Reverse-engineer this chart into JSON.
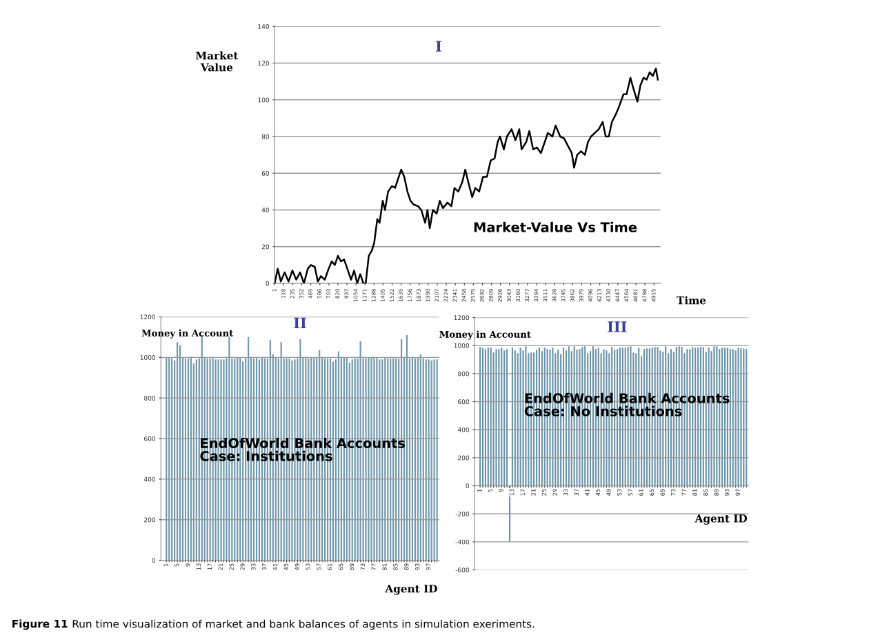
{
  "chart_data": [
    {
      "type": "line",
      "title": "I",
      "xlabel": "Time",
      "ylabel": "Market\nValue",
      "color": "#000000",
      "grid": "y",
      "annotations": [
        "Market-Value Vs Time"
      ],
      "xlim": [
        1,
        5000
      ],
      "xticks": [
        1,
        118,
        235,
        352,
        469,
        586,
        703,
        820,
        937,
        1054,
        1171,
        1288,
        1405,
        1522,
        1639,
        1756,
        1873,
        1990,
        2107,
        2224,
        2341,
        2458,
        2575,
        2692,
        2809,
        2926,
        3043,
        3160,
        3277,
        3394,
        3511,
        3628,
        3745,
        3862,
        3979,
        4096,
        4213,
        4330,
        4447,
        4564,
        4681,
        4798,
        4915
      ],
      "ylim": [
        0,
        140
      ],
      "yticks": [
        0,
        20,
        40,
        60,
        80,
        100,
        120,
        140
      ],
      "x": [
        1,
        40,
        80,
        130,
        180,
        230,
        280,
        330,
        380,
        430,
        470,
        520,
        560,
        600,
        650,
        700,
        740,
        780,
        820,
        860,
        900,
        950,
        990,
        1030,
        1070,
        1110,
        1150,
        1180,
        1220,
        1260,
        1290,
        1330,
        1360,
        1400,
        1430,
        1470,
        1520,
        1560,
        1600,
        1640,
        1680,
        1720,
        1760,
        1800,
        1860,
        1900,
        1950,
        1980,
        2010,
        2050,
        2100,
        2140,
        2180,
        2240,
        2290,
        2330,
        2380,
        2430,
        2470,
        2510,
        2560,
        2600,
        2650,
        2700,
        2750,
        2800,
        2850,
        2890,
        2920,
        2970,
        3010,
        3070,
        3120,
        3170,
        3200,
        3260,
        3300,
        3350,
        3400,
        3450,
        3500,
        3540,
        3600,
        3640,
        3700,
        3750,
        3800,
        3850,
        3880,
        3920,
        3970,
        4020,
        4060,
        4100,
        4150,
        4200,
        4250,
        4290,
        4330,
        4370,
        4420,
        4460,
        4520,
        4560,
        4610,
        4650,
        4700,
        4740,
        4780,
        4820,
        4860,
        4900,
        4940,
        4965
      ],
      "values": [
        0,
        8,
        1,
        6,
        1,
        7,
        2,
        6,
        0,
        8,
        10,
        9,
        1,
        4,
        2,
        8,
        12,
        10,
        15,
        12,
        13,
        7,
        2,
        7,
        0,
        5,
        0,
        0,
        15,
        18,
        22,
        35,
        33,
        45,
        40,
        50,
        53,
        52,
        57,
        62,
        58,
        50,
        45,
        43,
        42,
        40,
        33,
        40,
        30,
        40,
        38,
        45,
        41,
        44,
        42,
        52,
        50,
        55,
        62,
        55,
        47,
        52,
        50,
        58,
        58,
        67,
        68,
        77,
        80,
        73,
        80,
        84,
        78,
        84,
        73,
        77,
        83,
        73,
        74,
        71,
        77,
        82,
        80,
        86,
        80,
        79,
        75,
        71,
        63,
        70,
        72,
        70,
        77,
        80,
        82,
        84,
        88,
        80,
        80,
        88,
        92,
        96,
        103,
        103,
        112,
        106,
        99,
        108,
        112,
        111,
        115,
        113,
        117,
        111
      ]
    },
    {
      "type": "bar",
      "title": "II",
      "xlabel": "Agent ID",
      "ylabel": "Money in Account",
      "color": "#7097ac",
      "grid": "y",
      "annotations": [
        "EndOfWorld Bank Accounts\nCase: Institutions"
      ],
      "ylim": [
        0,
        1200
      ],
      "yticks": [
        0,
        200,
        400,
        600,
        800,
        1000,
        1200
      ],
      "categories": [
        "1",
        null,
        null,
        null,
        "5",
        null,
        null,
        null,
        "9",
        null,
        null,
        null,
        "13",
        null,
        null,
        null,
        "17",
        null,
        null,
        null,
        "21",
        null,
        null,
        null,
        "25",
        null,
        null,
        null,
        "29",
        null,
        null,
        null,
        "33",
        null,
        null,
        null,
        "37",
        null,
        null,
        null,
        "41",
        null,
        null,
        null,
        "45",
        null,
        null,
        null,
        "49",
        null,
        null,
        null,
        "53",
        null,
        null,
        null,
        "57",
        null,
        null,
        null,
        "61",
        null,
        null,
        null,
        "65",
        null,
        null,
        null,
        "69",
        null,
        null,
        null,
        "73",
        null,
        null,
        null,
        "77",
        null,
        null,
        null,
        "81",
        null,
        null,
        null,
        "85",
        null,
        null,
        null,
        "89",
        null,
        null,
        null,
        "93",
        null,
        null,
        null,
        "97",
        null,
        null,
        null
      ],
      "values": [
        1000,
        1000,
        995,
        985,
        1075,
        1060,
        1000,
        995,
        995,
        1005,
        970,
        990,
        995,
        1110,
        1000,
        995,
        995,
        1000,
        990,
        990,
        990,
        990,
        995,
        1100,
        995,
        995,
        1000,
        1000,
        980,
        1000,
        1100,
        1000,
        995,
        1000,
        990,
        1000,
        995,
        995,
        1085,
        1015,
        1000,
        995,
        1075,
        995,
        995,
        995,
        985,
        990,
        995,
        1090,
        1000,
        1000,
        995,
        1000,
        1000,
        1000,
        1035,
        1000,
        995,
        995,
        995,
        980,
        990,
        1030,
        1000,
        1000,
        1000,
        975,
        990,
        995,
        995,
        1080,
        995,
        995,
        1000,
        1000,
        1000,
        1000,
        990,
        990,
        1000,
        995,
        995,
        995,
        995,
        995,
        1090,
        1000,
        1110,
        995,
        1000,
        995,
        1000,
        1015,
        995,
        990,
        990,
        985,
        990,
        990
      ]
    },
    {
      "type": "bar",
      "title": "III",
      "xlabel": "Agent ID",
      "ylabel": "Money in Account",
      "color": "#6a93aa",
      "grid": "y",
      "annotations": [
        "EndOfWorld Bank Accounts\nCase: No Institutions",
        "Figure 11",
        "Run time visualization of market and bank balances of agents in simulation exeriments."
      ],
      "ylim": [
        -600,
        1200
      ],
      "yticks": [
        -600,
        -400,
        -200,
        0,
        200,
        400,
        600,
        800,
        1000,
        1200
      ],
      "categories": [
        "1",
        null,
        null,
        null,
        "5",
        null,
        null,
        null,
        "9",
        null,
        null,
        null,
        "13",
        null,
        null,
        null,
        "17",
        null,
        null,
        null,
        "21",
        null,
        null,
        null,
        "25",
        null,
        null,
        null,
        "29",
        null,
        null,
        null,
        "33",
        null,
        null,
        null,
        "37",
        null,
        null,
        null,
        "41",
        null,
        null,
        null,
        "45",
        null,
        null,
        null,
        "49",
        null,
        null,
        null,
        "53",
        null,
        null,
        null,
        "57",
        null,
        null,
        null,
        "61",
        null,
        null,
        null,
        "65",
        null,
        null,
        null,
        "69",
        null,
        null,
        null,
        "73",
        null,
        null,
        null,
        "77",
        null,
        null,
        null,
        "81",
        null,
        null,
        null,
        "85",
        null,
        null,
        null,
        "89",
        null,
        null,
        null,
        "93",
        null,
        null,
        null,
        "97",
        null,
        null,
        null
      ],
      "values": [
        990,
        985,
        975,
        985,
        985,
        950,
        975,
        975,
        985,
        965,
        975,
        -400,
        985,
        965,
        945,
        985,
        965,
        995,
        945,
        950,
        950,
        970,
        985,
        960,
        985,
        975,
        970,
        985,
        945,
        970,
        940,
        985,
        965,
        995,
        960,
        995,
        970,
        975,
        990,
        995,
        945,
        960,
        995,
        975,
        985,
        945,
        975,
        965,
        945,
        990,
        970,
        975,
        985,
        985,
        985,
        990,
        995,
        950,
        945,
        985,
        925,
        975,
        980,
        980,
        985,
        990,
        990,
        965,
        955,
        995,
        945,
        975,
        955,
        990,
        995,
        990,
        945,
        975,
        975,
        990,
        985,
        985,
        990,
        990,
        955,
        985,
        960,
        995,
        995,
        975,
        985,
        985,
        985,
        975,
        975,
        965,
        985,
        980,
        980,
        975
      ]
    }
  ]
}
